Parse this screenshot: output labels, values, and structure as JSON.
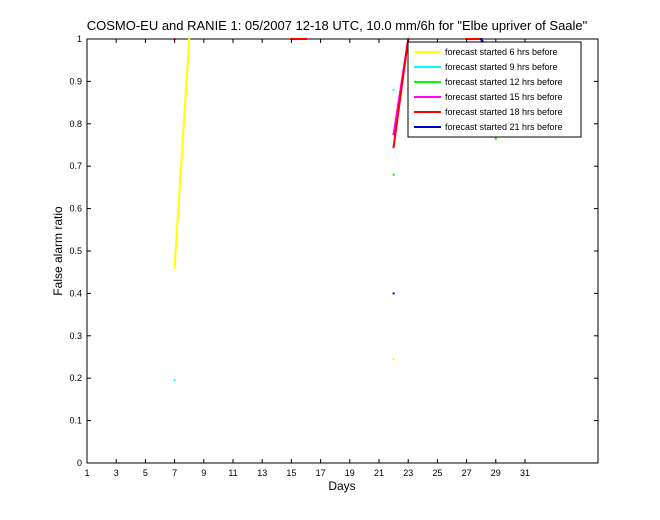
{
  "chart_data": {
    "type": "line",
    "title": "COSMO-EU and RANIE 1: 05/2007 12-18 UTC, 10.0 mm/6h for \"Elbe upriver of Saale\"",
    "xlabel": "Days",
    "ylabel": "False alarm ratio",
    "xlim": [
      1,
      36
    ],
    "ylim": [
      0,
      1
    ],
    "xticks": [
      1,
      3,
      5,
      7,
      9,
      11,
      13,
      15,
      17,
      19,
      21,
      23,
      25,
      27,
      29,
      31
    ],
    "yticks": [
      0,
      0.1,
      0.2,
      0.3,
      0.4,
      0.5,
      0.6,
      0.7,
      0.8,
      0.9,
      1
    ],
    "ytick_labels": [
      "0",
      "0.1",
      "0.2",
      "0.3",
      "0.4",
      "0.5",
      "0.6",
      "0.7",
      "0.8",
      "0.9",
      "1"
    ],
    "grid": false,
    "legend_position": "top-right",
    "series": [
      {
        "name": "forecast started 6 hrs before",
        "color": "#ffff00",
        "points": [
          [
            7,
            0.46
          ],
          [
            8,
            1.0
          ],
          [
            22,
            0.245
          ],
          [
            28,
            1.0
          ],
          [
            29,
            0.95
          ]
        ]
      },
      {
        "name": "forecast started 9 hrs before",
        "color": "#00ffff",
        "points": [
          [
            7,
            0.195
          ],
          [
            22,
            0.88
          ],
          [
            27,
            1.0
          ],
          [
            28,
            1.0
          ],
          [
            29,
            0.81
          ]
        ]
      },
      {
        "name": "forecast started 12 hrs before",
        "color": "#00ff00",
        "points": [
          [
            22,
            0.68
          ],
          [
            27,
            1.0
          ],
          [
            28,
            1.0
          ],
          [
            29,
            0.765
          ]
        ]
      },
      {
        "name": "forecast started 15 hrs before",
        "color": "#ff00ff",
        "points": [
          [
            7,
            1.0
          ],
          [
            15,
            1.0
          ],
          [
            16,
            1.0
          ],
          [
            22,
            0.775
          ],
          [
            23,
            1.0
          ],
          [
            27,
            1.0
          ],
          [
            28,
            1.0
          ],
          [
            29,
            0.905
          ]
        ]
      },
      {
        "name": "forecast started 18 hrs before",
        "color": "#ff0000",
        "points": [
          [
            7,
            1.0
          ],
          [
            15,
            1.0
          ],
          [
            16,
            1.0
          ],
          [
            22,
            0.745
          ],
          [
            23,
            1.0
          ],
          [
            27,
            1.0
          ],
          [
            28,
            1.0
          ],
          [
            29,
            0.9
          ]
        ]
      },
      {
        "name": "forecast started 21 hrs before",
        "color": "#0000cc",
        "points": [
          [
            22,
            0.4
          ],
          [
            28,
            1.0
          ],
          [
            29,
            0.945
          ]
        ]
      }
    ]
  }
}
